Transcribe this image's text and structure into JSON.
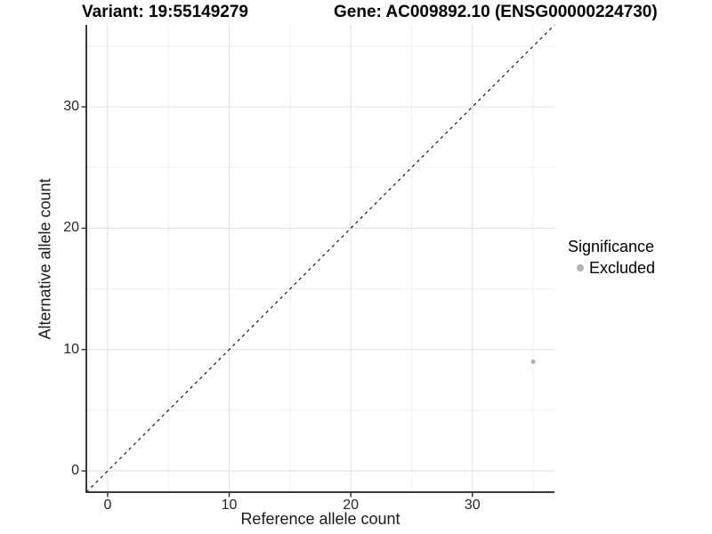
{
  "figure": {
    "title_variant": "Variant: 19:55149279",
    "title_gene": "Gene: AC009892.10 (ENSG00000224730)"
  },
  "axes": {
    "x_label": "Reference allele count",
    "y_label": "Alternative allele count"
  },
  "legend": {
    "title": "Significance",
    "items": [
      {
        "label": "Excluded",
        "color": "#b3b3b3"
      }
    ]
  },
  "colors": {
    "background": "#ffffff",
    "axis_line": "#3a3a3a",
    "major_grid": "#e4e4e4",
    "minor_grid": "#f0f0f0",
    "dashed_line": "#1a1a1a",
    "point": "#b3b3b3"
  },
  "chart_data": {
    "type": "scatter",
    "title": "Variant: 19:55149279 | Gene: AC009892.10 (ENSG00000224730)",
    "xlabel": "Reference allele count",
    "ylabel": "Alternative allele count",
    "xlim": [
      -1.75,
      36.75
    ],
    "ylim": [
      -1.75,
      36.75
    ],
    "x_major_ticks": [
      0,
      10,
      20,
      30
    ],
    "y_major_ticks": [
      0,
      10,
      20,
      30
    ],
    "x_minor_ticks": [
      5,
      15,
      25,
      35
    ],
    "y_minor_ticks": [
      5,
      15,
      25,
      35
    ],
    "grid": true,
    "legend_position": "right",
    "series": [
      {
        "name": "Excluded",
        "color": "#b3b3b3",
        "points": [
          {
            "x": 35,
            "y": 9
          }
        ]
      }
    ],
    "reference_line": {
      "type": "identity",
      "equation": "y = x",
      "style": "dashed",
      "span": [
        -1.75,
        36.75
      ]
    }
  }
}
